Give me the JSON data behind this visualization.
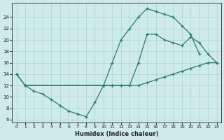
{
  "xlabel": "Humidex (Indice chaleur)",
  "bg_color": "#ceeaea",
  "line_color": "#2a7a72",
  "grid_color": "#aad4d4",
  "xlim": [
    -0.5,
    23.5
  ],
  "ylim": [
    5.5,
    26.5
  ],
  "xticks": [
    0,
    1,
    2,
    3,
    4,
    5,
    6,
    7,
    8,
    9,
    10,
    11,
    12,
    13,
    14,
    15,
    16,
    17,
    18,
    19,
    20,
    21,
    22,
    23
  ],
  "yticks": [
    6,
    8,
    10,
    12,
    14,
    16,
    18,
    20,
    22,
    24
  ],
  "line1_x": [
    0,
    1,
    2,
    3,
    4,
    5,
    6,
    7,
    8,
    9,
    10,
    11,
    12,
    13,
    14,
    15,
    16,
    17,
    18,
    19,
    20,
    21,
    22,
    23
  ],
  "line1_y": [
    14,
    12,
    11,
    10.5,
    9.5,
    8.5,
    7.5,
    7,
    6.5,
    9,
    12,
    12,
    12,
    12,
    12,
    12.5,
    13,
    13.5,
    14,
    14.5,
    15,
    15.5,
    16,
    16
  ],
  "line2_x": [
    0,
    1,
    10,
    11,
    12,
    13,
    14,
    15,
    16,
    17,
    18,
    19,
    20,
    21,
    22,
    23
  ],
  "line2_y": [
    14,
    12,
    12,
    12,
    12,
    12,
    16,
    21,
    21,
    20,
    19.5,
    19,
    20.5,
    19.5,
    17.5,
    16
  ],
  "line3_x": [
    1,
    10,
    11,
    12,
    13,
    14,
    15,
    16,
    17,
    18,
    19,
    20,
    21
  ],
  "line3_y": [
    12,
    12,
    16,
    20,
    22,
    24,
    25.5,
    25,
    24.5,
    24,
    22.5,
    21,
    17.5
  ]
}
